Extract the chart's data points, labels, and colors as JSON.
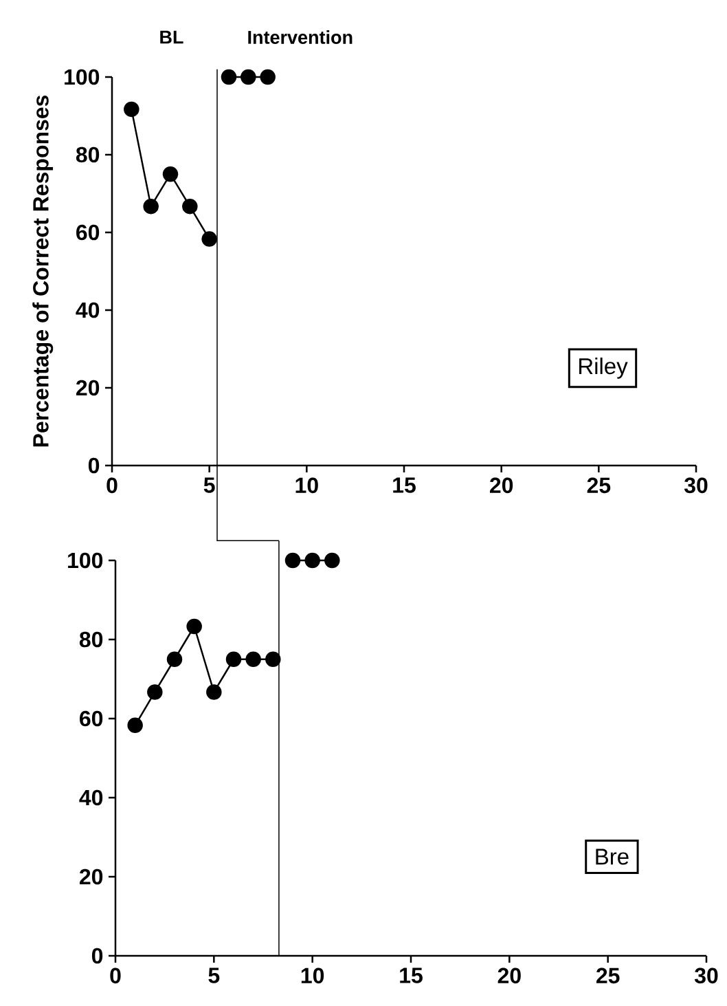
{
  "chart_data": [
    {
      "type": "line",
      "title": "Riley",
      "ylabel": "Percentage of Correct  Responses",
      "annotations": [
        "BL",
        "Intervention"
      ],
      "xlim": [
        0,
        30
      ],
      "xticks": [
        0,
        5,
        10,
        15,
        20,
        25,
        30
      ],
      "ylim": [
        0,
        100
      ],
      "yticks": [
        0,
        20,
        40,
        60,
        80,
        100
      ],
      "grid": false,
      "marker": "circle",
      "line_style": "solid",
      "ref_lines": [
        {
          "axis": "x",
          "value": 5.4,
          "color": "#000000"
        }
      ],
      "series": [
        {
          "color": "#000000",
          "x": [
            1,
            2,
            3,
            4,
            5
          ],
          "values": [
            91.7,
            66.7,
            75,
            66.7,
            58.3
          ]
        },
        {
          "color": "#000000",
          "x": [
            6,
            7,
            8
          ],
          "values": [
            100,
            100,
            100
          ]
        }
      ]
    },
    {
      "type": "line",
      "title": "Bre",
      "xlim": [
        0,
        30
      ],
      "xticks": [
        0,
        5,
        10,
        15,
        20,
        25,
        30
      ],
      "ylim": [
        0,
        100
      ],
      "yticks": [
        0,
        20,
        40,
        60,
        80,
        100
      ],
      "grid": false,
      "marker": "circle",
      "line_style": "solid",
      "ref_lines": [
        {
          "axis": "x",
          "value": 8.3,
          "color": "#000000"
        }
      ],
      "series": [
        {
          "color": "#000000",
          "x": [
            1,
            2,
            3,
            4,
            5,
            6,
            7,
            8
          ],
          "values": [
            58.3,
            66.7,
            75,
            83.3,
            66.7,
            75,
            75,
            75
          ]
        },
        {
          "color": "#000000",
          "x": [
            9,
            10,
            11
          ],
          "values": [
            100,
            100,
            100
          ]
        }
      ]
    }
  ]
}
